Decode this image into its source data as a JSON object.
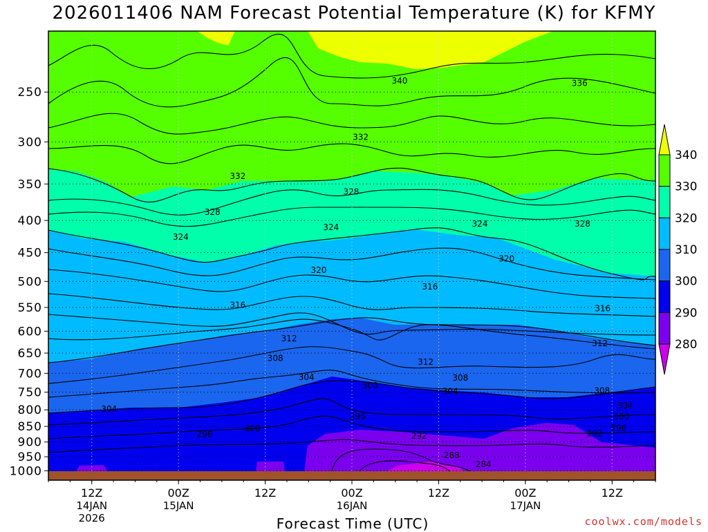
{
  "title": "2026011406 NAM Forecast Potential Temperature (K) for KFMY",
  "footer": "coolwx.com/models",
  "chart_data": {
    "type": "heatmap",
    "title": "2026011406 NAM Forecast Potential Temperature (K) for KFMY",
    "xlabel": "Forecast Time (UTC)",
    "ylabel": "",
    "y_scale": "log",
    "y_reversed": true,
    "y_ticks": [
      250,
      300,
      350,
      400,
      450,
      500,
      550,
      600,
      650,
      700,
      750,
      800,
      850,
      900,
      950,
      1000
    ],
    "x_ticks": [
      {
        "hour": 6,
        "label": "12Z",
        "sub1": "14JAN",
        "sub2": "2026"
      },
      {
        "hour": 18,
        "label": "00Z",
        "sub1": "15JAN",
        "sub2": ""
      },
      {
        "hour": 30,
        "label": "12Z",
        "sub1": "",
        "sub2": ""
      },
      {
        "hour": 42,
        "label": "00Z",
        "sub1": "16JAN",
        "sub2": ""
      },
      {
        "hour": 54,
        "label": "12Z",
        "sub1": "",
        "sub2": ""
      },
      {
        "hour": 66,
        "label": "00Z",
        "sub1": "17JAN",
        "sub2": ""
      },
      {
        "hour": 78,
        "label": "12Z",
        "sub1": "",
        "sub2": ""
      }
    ],
    "legend": {
      "placement": "right",
      "levels": [
        280,
        290,
        300,
        310,
        320,
        330,
        340
      ],
      "colors": [
        "#cc00ee",
        "#7a00ee",
        "#0000ee",
        "#1a66ee",
        "#00bbff",
        "#00ffaa",
        "#55ff00",
        "#eeff00"
      ]
    },
    "contour_labels": [
      {
        "value": "340",
        "x": 48.6,
        "y": 240
      },
      {
        "value": "336",
        "x": 73.5,
        "y": 242
      },
      {
        "value": "332",
        "x": 43.2,
        "y": 295
      },
      {
        "value": "332",
        "x": 26.2,
        "y": 340
      },
      {
        "value": "328",
        "x": 41.9,
        "y": 360
      },
      {
        "value": "328",
        "x": 22.7,
        "y": 388
      },
      {
        "value": "328",
        "x": 73.9,
        "y": 405
      },
      {
        "value": "324",
        "x": 18.3,
        "y": 425
      },
      {
        "value": "324",
        "x": 39.1,
        "y": 410
      },
      {
        "value": "324",
        "x": 59.7,
        "y": 405
      },
      {
        "value": "320",
        "x": 37.4,
        "y": 480
      },
      {
        "value": "320",
        "x": 63.4,
        "y": 460
      },
      {
        "value": "316",
        "x": 26.2,
        "y": 545
      },
      {
        "value": "316",
        "x": 52.8,
        "y": 510
      },
      {
        "value": "316",
        "x": 76.7,
        "y": 552
      },
      {
        "value": "312",
        "x": 33.3,
        "y": 616
      },
      {
        "value": "312",
        "x": 52.2,
        "y": 672
      },
      {
        "value": "312",
        "x": 76.3,
        "y": 627
      },
      {
        "value": "308",
        "x": 31.4,
        "y": 662
      },
      {
        "value": "308",
        "x": 57.0,
        "y": 712
      },
      {
        "value": "308",
        "x": 76.6,
        "y": 746
      },
      {
        "value": "304",
        "x": 35.7,
        "y": 710
      },
      {
        "value": "304",
        "x": 8.4,
        "y": 798
      },
      {
        "value": "304",
        "x": 55.6,
        "y": 748
      },
      {
        "value": "304",
        "x": 79.8,
        "y": 788
      },
      {
        "value": "300",
        "x": 44.5,
        "y": 732
      },
      {
        "value": "300",
        "x": 28.2,
        "y": 857
      },
      {
        "value": "300",
        "x": 79.3,
        "y": 820
      },
      {
        "value": "296",
        "x": 42.8,
        "y": 820
      },
      {
        "value": "296",
        "x": 21.6,
        "y": 875
      },
      {
        "value": "296",
        "x": 78.9,
        "y": 855
      },
      {
        "value": "292",
        "x": 51.3,
        "y": 880
      },
      {
        "value": "292",
        "x": 75.6,
        "y": 873
      },
      {
        "value": "288",
        "x": 55.8,
        "y": 945
      },
      {
        "value": "284",
        "x": 60.2,
        "y": 976
      }
    ],
    "x_range_hours": [
      0,
      84
    ],
    "y_range_hpa": [
      200,
      1035
    ]
  }
}
